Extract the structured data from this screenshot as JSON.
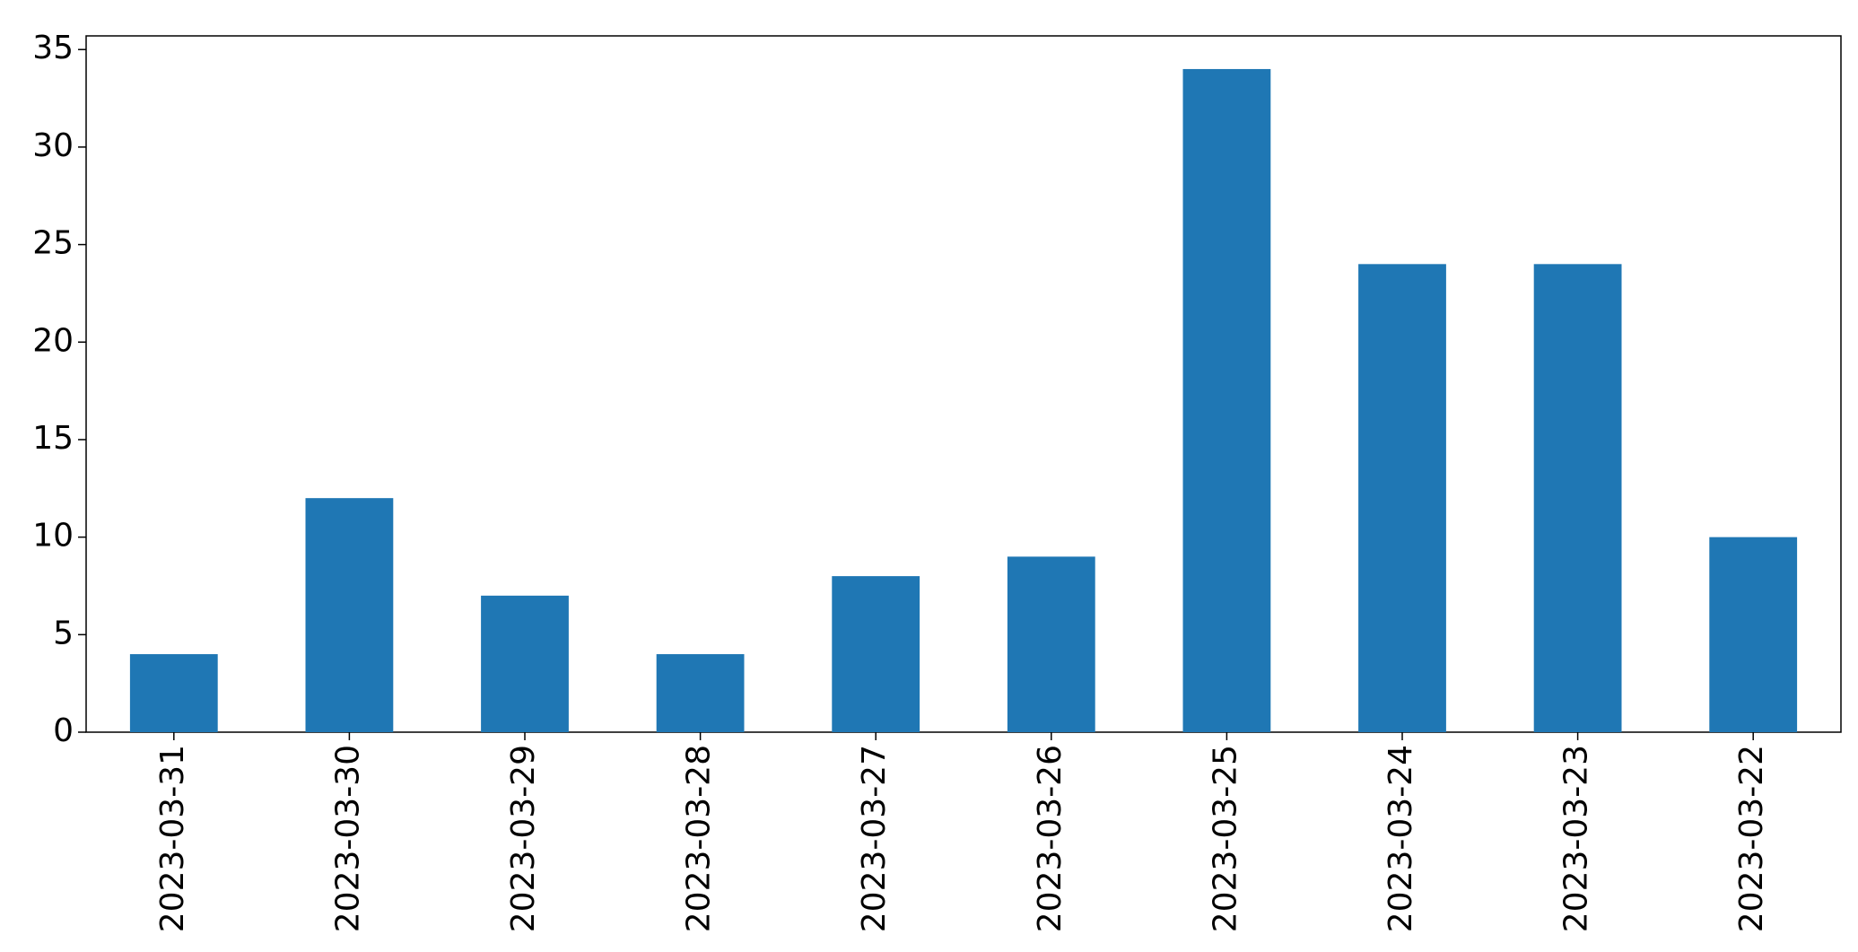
{
  "chart_data": {
    "type": "bar",
    "categories": [
      "2023-03-31",
      "2023-03-30",
      "2023-03-29",
      "2023-03-28",
      "2023-03-27",
      "2023-03-26",
      "2023-03-25",
      "2023-03-24",
      "2023-03-23",
      "2023-03-22"
    ],
    "values": [
      4,
      12,
      7,
      4,
      8,
      9,
      34,
      24,
      24,
      10
    ],
    "color": "#1f77b4",
    "ylim": [
      0,
      35.7
    ],
    "yticks": [
      0,
      5,
      10,
      15,
      20,
      25,
      30,
      35
    ],
    "grid": false
  }
}
